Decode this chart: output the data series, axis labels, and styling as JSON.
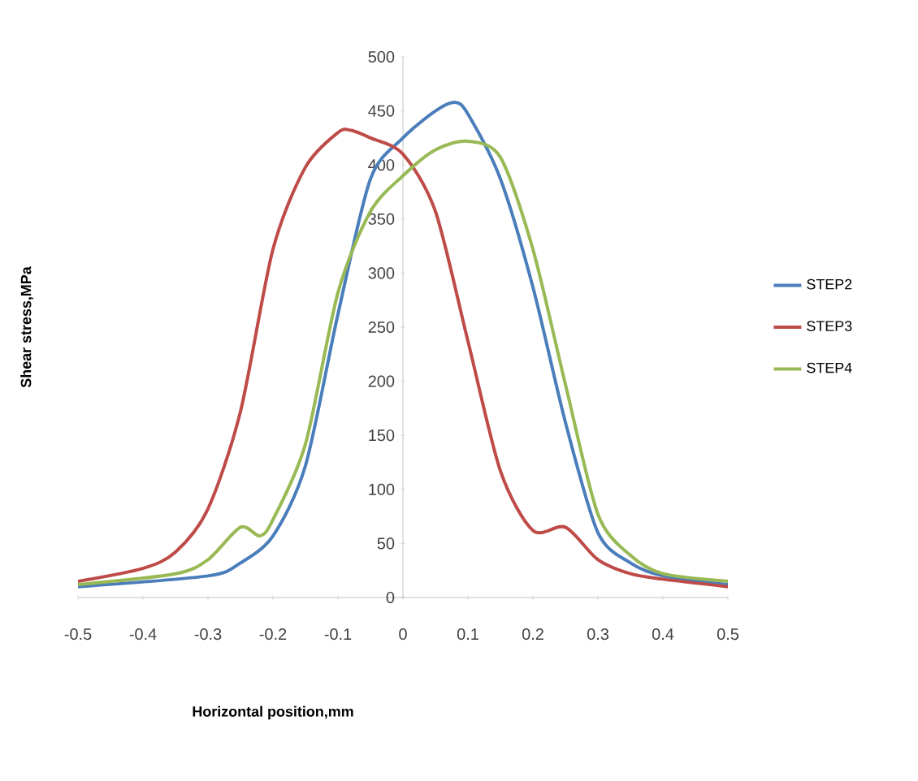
{
  "chart_data": {
    "type": "line",
    "xlabel": "Horizontal position,mm",
    "ylabel": "Shear stress,MPa",
    "legend": "right",
    "xlim": [
      -0.5,
      0.5
    ],
    "ylim": [
      0,
      500
    ],
    "xticks": [
      -0.5,
      -0.4,
      -0.3,
      -0.2,
      -0.1,
      0,
      0.1,
      0.2,
      0.3,
      0.4,
      0.5
    ],
    "yticks": [
      0,
      50,
      100,
      150,
      200,
      250,
      300,
      350,
      400,
      450,
      500
    ],
    "series": [
      {
        "name": "STEP2",
        "color": "#4a7ebb",
        "x": [
          -0.5,
          -0.3,
          -0.25,
          -0.2,
          -0.15,
          -0.1,
          -0.05,
          0,
          0.05,
          0.08,
          0.1,
          0.15,
          0.2,
          0.25,
          0.3,
          0.35,
          0.4,
          0.5
        ],
        "values": [
          10,
          20,
          32,
          57,
          122,
          262,
          387,
          425,
          450,
          458,
          447,
          387,
          287,
          162,
          60,
          32,
          20,
          12
        ]
      },
      {
        "name": "STEP3",
        "color": "#be4b48",
        "x": [
          -0.5,
          -0.4,
          -0.35,
          -0.3,
          -0.25,
          -0.2,
          -0.15,
          -0.1,
          -0.08,
          -0.05,
          0,
          0.05,
          0.1,
          0.15,
          0.2,
          0.25,
          0.3,
          0.35,
          0.4,
          0.5
        ],
        "values": [
          15,
          27,
          42,
          82,
          172,
          322,
          398,
          430,
          432,
          425,
          410,
          357,
          237,
          117,
          62,
          65,
          35,
          22,
          17,
          10
        ]
      },
      {
        "name": "STEP4",
        "color": "#98b954",
        "x": [
          -0.5,
          -0.35,
          -0.3,
          -0.25,
          -0.22,
          -0.2,
          -0.15,
          -0.1,
          -0.05,
          0,
          0.05,
          0.1,
          0.15,
          0.2,
          0.25,
          0.3,
          0.35,
          0.4,
          0.5
        ],
        "values": [
          12,
          22,
          35,
          65,
          57,
          72,
          142,
          282,
          357,
          390,
          414,
          422,
          407,
          322,
          197,
          77,
          39,
          22,
          15
        ]
      }
    ]
  }
}
